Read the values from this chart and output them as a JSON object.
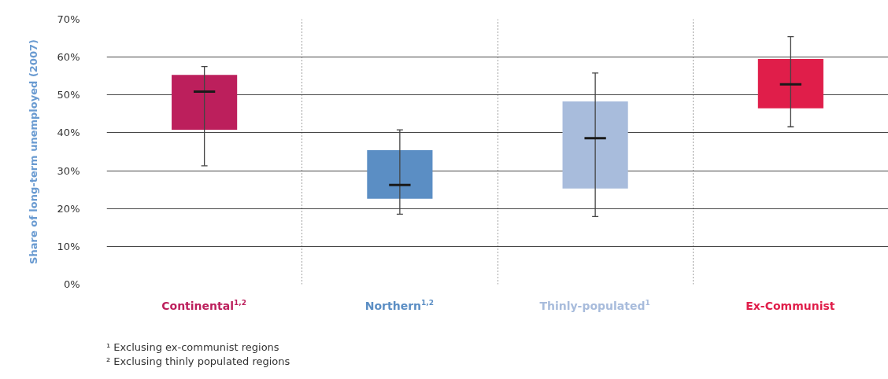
{
  "chart_data": {
    "type": "box",
    "ylabel": "Share of long-term unemployed (2007)",
    "categories": [
      "Continental$^{1,2}$",
      "Northern$^{1,2}$",
      "Thinly-populated$^{1}$",
      "Ex-Communist"
    ],
    "colors": [
      "#bc1f5c",
      "#5b8ec4",
      "#a8bcdc",
      "#e01e4a"
    ],
    "boxes": [
      {
        "low": 31.3,
        "q1": 40.8,
        "median": 50.9,
        "q3": 55.3,
        "high": 57.5
      },
      {
        "low": 18.5,
        "q1": 22.6,
        "median": 26.2,
        "q3": 35.4,
        "high": 40.8
      },
      {
        "low": 17.9,
        "q1": 25.3,
        "median": 38.6,
        "q3": 48.3,
        "high": 55.8
      },
      {
        "low": 41.6,
        "q1": 46.5,
        "median": 52.8,
        "q3": 59.5,
        "high": 65.4
      }
    ],
    "ylim": [
      0,
      70
    ],
    "yticks": [
      {
        "value": 0,
        "label": "0%"
      },
      {
        "value": 10,
        "label": "10%"
      },
      {
        "value": 20,
        "label": "20%"
      },
      {
        "value": 30,
        "label": "30%"
      },
      {
        "value": 40,
        "label": "40%"
      },
      {
        "value": 50,
        "label": "50%"
      },
      {
        "value": 60,
        "label": "60%"
      },
      {
        "value": 70,
        "label": "70%"
      }
    ],
    "grid": true,
    "annotations": [
      "¹ Exclusing ex-communist regions",
      "² Exclusing thinly populated regions"
    ]
  }
}
